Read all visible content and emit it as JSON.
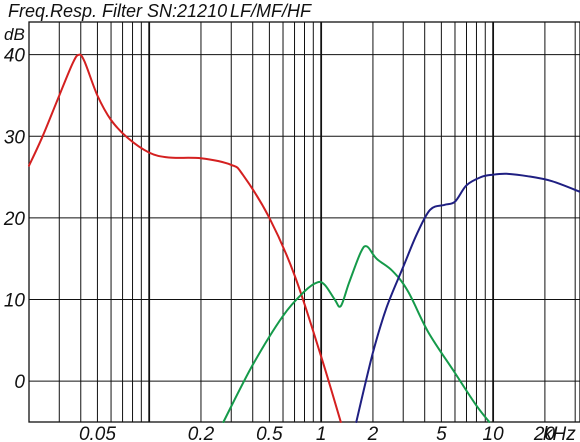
{
  "chart_data": {
    "type": "line",
    "title": "Freq.Resp. Filter SN:21210",
    "legend": [
      {
        "name": "LF",
        "color": "#d42020"
      },
      {
        "name": "MF",
        "color": "#159a4a"
      },
      {
        "name": "HF",
        "color": "#1f1f82"
      }
    ],
    "legend_separator": "/",
    "ylabel": "dB",
    "xlabel": "kHz",
    "x_scale": "log",
    "xlim": [
      0.02,
      32
    ],
    "ylim": [
      -5,
      44
    ],
    "grid": true,
    "y_ticks": [
      {
        "value": 40,
        "label": "40"
      },
      {
        "value": 30,
        "label": "30"
      },
      {
        "value": 20,
        "label": "20"
      },
      {
        "value": 10,
        "label": "10"
      },
      {
        "value": 0,
        "label": "0"
      }
    ],
    "x_ticks": [
      {
        "value": 0.05,
        "label": "0.05"
      },
      {
        "value": 0.2,
        "label": "0.2"
      },
      {
        "value": 0.5,
        "label": "0.5"
      },
      {
        "value": 1,
        "label": "1"
      },
      {
        "value": 2,
        "label": "2"
      },
      {
        "value": 5,
        "label": "5"
      },
      {
        "value": 10,
        "label": "10"
      },
      {
        "value": 20,
        "label": "20kHz"
      }
    ],
    "series": [
      {
        "name": "LF",
        "color": "#d42020",
        "points": [
          [
            0.02,
            26.4
          ],
          [
            0.024,
            30
          ],
          [
            0.03,
            35
          ],
          [
            0.036,
            39
          ],
          [
            0.039,
            40
          ],
          [
            0.042,
            39.2
          ],
          [
            0.05,
            35
          ],
          [
            0.06,
            32
          ],
          [
            0.075,
            29.8
          ],
          [
            0.1,
            28
          ],
          [
            0.13,
            27.4
          ],
          [
            0.2,
            27.3
          ],
          [
            0.3,
            26.5
          ],
          [
            0.35,
            25.3
          ],
          [
            0.5,
            20
          ],
          [
            0.7,
            13
          ],
          [
            1.0,
            3
          ],
          [
            1.3,
            -5
          ]
        ]
      },
      {
        "name": "MF",
        "color": "#159a4a",
        "points": [
          [
            0.27,
            -5
          ],
          [
            0.4,
            2
          ],
          [
            0.6,
            8
          ],
          [
            0.8,
            11
          ],
          [
            0.95,
            12.1
          ],
          [
            1.05,
            11.8
          ],
          [
            1.2,
            10
          ],
          [
            1.3,
            9.2
          ],
          [
            1.45,
            12
          ],
          [
            1.7,
            15.8
          ],
          [
            1.85,
            16.5
          ],
          [
            2.1,
            15
          ],
          [
            2.6,
            13.5
          ],
          [
            3.2,
            11
          ],
          [
            4.2,
            6
          ],
          [
            6,
            1
          ],
          [
            8,
            -3
          ],
          [
            9.5,
            -5
          ]
        ]
      },
      {
        "name": "HF",
        "color": "#1f1f82",
        "points": [
          [
            1.6,
            -5
          ],
          [
            2,
            3.5
          ],
          [
            2.4,
            9
          ],
          [
            3,
            14
          ],
          [
            3.6,
            18
          ],
          [
            4.3,
            21
          ],
          [
            5.2,
            21.6
          ],
          [
            6,
            22
          ],
          [
            7,
            24
          ],
          [
            8.5,
            25
          ],
          [
            10,
            25.3
          ],
          [
            12,
            25.4
          ],
          [
            16,
            25.1
          ],
          [
            22,
            24.5
          ],
          [
            32,
            23.2
          ]
        ]
      }
    ]
  }
}
